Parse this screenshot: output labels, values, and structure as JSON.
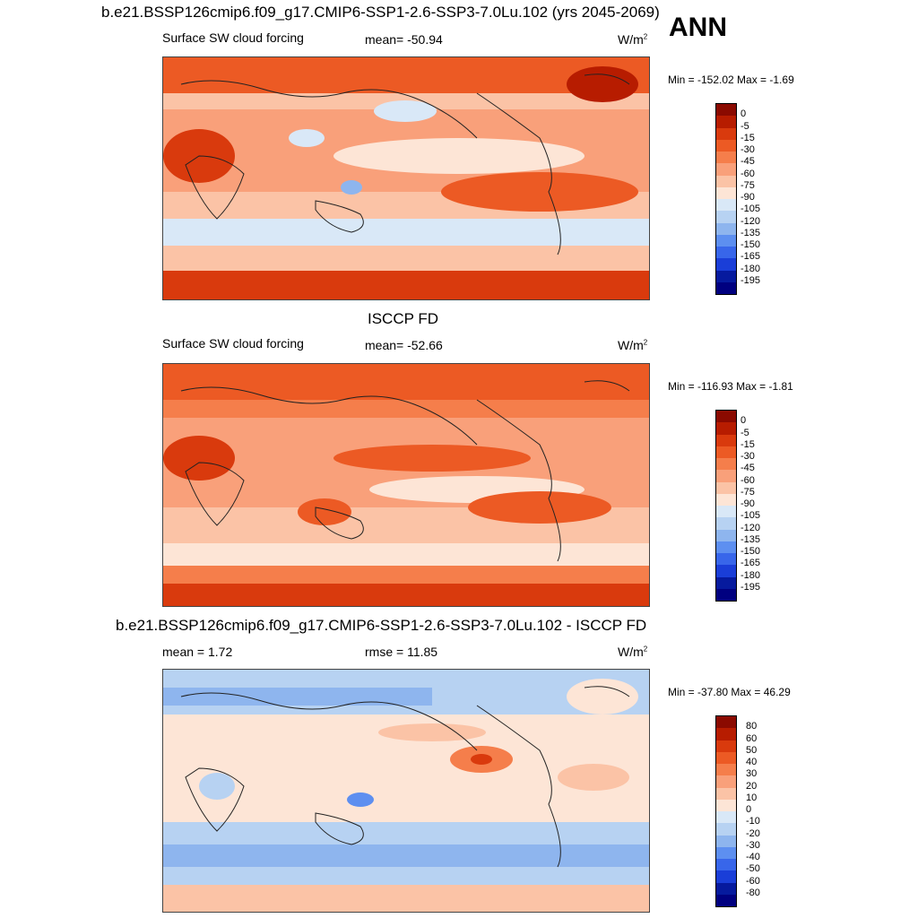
{
  "season": "ANN",
  "panels": [
    {
      "title": "b.e21.BSSP126cmip6.f09_g17.CMIP6-SSP1-2.6-SSP3-7.0Lu.102 (yrs 2045-2069)",
      "left_label": "Surface SW cloud forcing",
      "center_label": "mean= -50.94",
      "units": "W/m",
      "units_sup": "2",
      "minmax": "Min = -152.02 Max =  -1.69",
      "scale": "abs",
      "colorbar": [
        "0",
        "-5",
        "-15",
        "-30",
        "-45",
        "-60",
        "-75",
        "-90",
        "-105",
        "-120",
        "-135",
        "-150",
        "-165",
        "-180",
        "-195"
      ]
    },
    {
      "title": "ISCCP FD",
      "left_label": "Surface SW cloud forcing",
      "center_label": "mean= -52.66",
      "units": "W/m",
      "units_sup": "2",
      "minmax": "Min = -116.93 Max =  -1.81",
      "scale": "abs",
      "colorbar": [
        "0",
        "-5",
        "-15",
        "-30",
        "-45",
        "-60",
        "-75",
        "-90",
        "-105",
        "-120",
        "-135",
        "-150",
        "-165",
        "-180",
        "-195"
      ]
    },
    {
      "title": "b.e21.BSSP126cmip6.f09_g17.CMIP6-SSP1-2.6-SSP3-7.0Lu.102 - ISCCP FD",
      "left_label": "mean =   1.72",
      "center_label": "rmse =  11.85",
      "units": "W/m",
      "units_sup": "2",
      "minmax": "Min = -37.80 Max =  46.29",
      "scale": "diff",
      "colorbar": [
        "80",
        "60",
        "50",
        "40",
        "30",
        "20",
        "10",
        "0",
        "-10",
        "-20",
        "-30",
        "-40",
        "-50",
        "-60",
        "-80"
      ]
    }
  ],
  "colors": {
    "abs": [
      "#8b0a00",
      "#b71c00",
      "#d93a0d",
      "#ec5a24",
      "#f57e4b",
      "#f9a07a",
      "#fbc3a6",
      "#fde5d6",
      "#d9e8f7",
      "#b7d2f2",
      "#8eb5ee",
      "#5d8ff0",
      "#3866ea",
      "#1a3ed8",
      "#061a9e",
      "#000080"
    ],
    "diff": [
      "#8b0a00",
      "#b71c00",
      "#d93a0d",
      "#ec5a24",
      "#f57e4b",
      "#f9a07a",
      "#fbc3a6",
      "#fde5d6",
      "#d9e8f7",
      "#b7d2f2",
      "#8eb5ee",
      "#5d8ff0",
      "#3866ea",
      "#1a3ed8",
      "#061a9e",
      "#000080"
    ]
  }
}
